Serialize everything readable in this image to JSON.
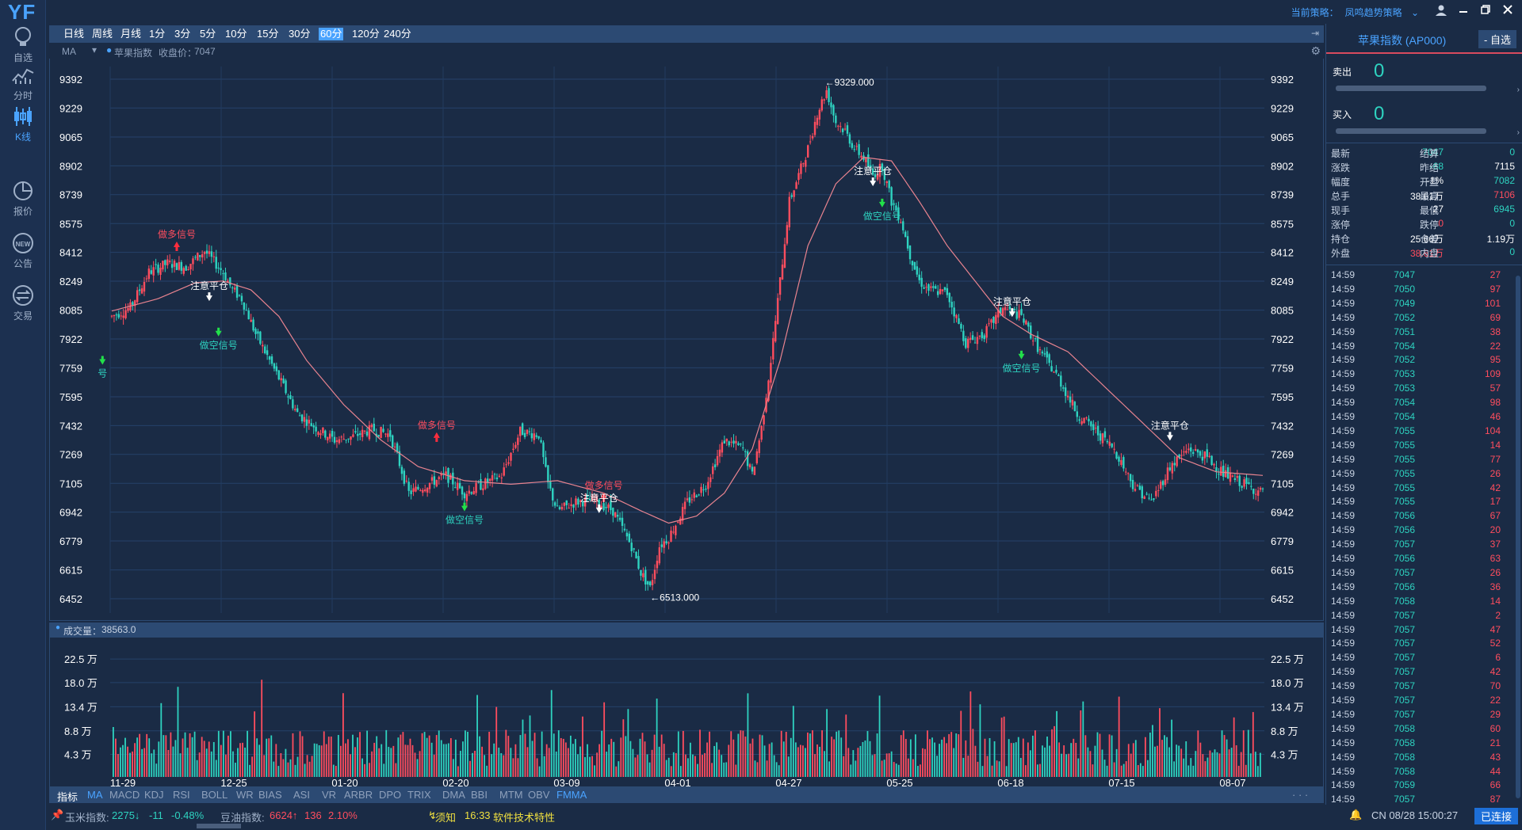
{
  "app": {
    "logo": "YF"
  },
  "nav": [
    {
      "label": "自选",
      "icon": "bulb-icon"
    },
    {
      "label": "分时",
      "icon": "line-chart-icon"
    },
    {
      "label": "K线",
      "icon": "candlestick-icon",
      "active": true
    },
    {
      "label": "报价",
      "icon": "pie-chart-icon"
    },
    {
      "label": "公告",
      "icon": "new-badge-icon"
    },
    {
      "label": "交易",
      "icon": "exchange-icon"
    }
  ],
  "topbar": {
    "strategy_label": "当前策略：",
    "strategy_value": "凤鸣趋势策略"
  },
  "periods": [
    "日线",
    "周线",
    "月线",
    "1分",
    "3分",
    "5分",
    "10分",
    "15分",
    "30分",
    "60分",
    "120分",
    "240分"
  ],
  "active_period": "60分",
  "ma_header": {
    "ma": "MA",
    "symbol": "苹果指数",
    "close_label": "收盘价：",
    "close_value": "7047"
  },
  "volume_header": {
    "label": "成交量：",
    "value": "38563.0"
  },
  "indicators": {
    "label": "指标",
    "items": [
      "MA",
      "MACD",
      "KDJ",
      "RSI",
      "BOLL",
      "WR",
      "BIAS",
      "ASI",
      "VR",
      "ARBR",
      "DPO",
      "TRIX",
      "DMA",
      "BBI",
      "MTM",
      "OBV",
      "FMMA"
    ],
    "active": [
      "MA",
      "FMMA"
    ]
  },
  "statusbar": {
    "corn_label": "玉米指数:",
    "corn_price": "2275↓",
    "corn_chg": "-11",
    "corn_pct": "-0.48%",
    "oil_label": "豆油指数:",
    "oil_price": "6624↑",
    "oil_chg": "136",
    "oil_pct": "2.10%",
    "notice_label": "须知",
    "notice_time": "16:33",
    "notice_text": "软件技术特性",
    "cn_time": "CN 08/28 15:00:27",
    "connected": "已连接"
  },
  "colors": {
    "up": "#ff4d5e",
    "down": "#2ed3c0",
    "accent": "#4aa3ff",
    "ma": "#e8838f",
    "bg": "#1a2b45"
  },
  "chart_data": {
    "type": "candlestick",
    "title": "苹果指数",
    "ylim": [
      6452,
      9392
    ],
    "y_ticks": [
      "9392",
      "9229",
      "9065",
      "8902",
      "8739",
      "8575",
      "8412",
      "8249",
      "8085",
      "7922",
      "7759",
      "7595",
      "7432",
      "7269",
      "7105",
      "6942",
      "6779",
      "6615",
      "6452"
    ],
    "x_ticks": [
      "11-29",
      "12-25",
      "01-20",
      "02-20",
      "03-09",
      "04-01",
      "04-27",
      "05-25",
      "06-18",
      "07-15",
      "08-07"
    ],
    "high_label": "←9329.000",
    "low_label": "←6513.000",
    "signals": [
      {
        "text": "做多信号",
        "kind": "long"
      },
      {
        "text": "注意平仓",
        "kind": "close"
      },
      {
        "text": "做空信号",
        "kind": "short"
      },
      {
        "text": "做多信号",
        "kind": "long"
      },
      {
        "text": "做空信号",
        "kind": "short"
      },
      {
        "text": "做多信号",
        "kind": "long"
      },
      {
        "text": "注意平仓",
        "kind": "close"
      },
      {
        "text": "注意平仓",
        "kind": "close"
      },
      {
        "text": "做空信号",
        "kind": "short"
      },
      {
        "text": "注意平仓",
        "kind": "close"
      },
      {
        "text": "做空信号",
        "kind": "short"
      },
      {
        "text": "注意平仓",
        "kind": "close"
      },
      {
        "text": "号",
        "kind": "short"
      }
    ],
    "close_path": [
      [
        0,
        8050
      ],
      [
        4,
        8100
      ],
      [
        8,
        8300
      ],
      [
        12,
        8350
      ],
      [
        16,
        8330
      ],
      [
        20,
        8420
      ],
      [
        24,
        8300
      ],
      [
        26,
        8200
      ],
      [
        28,
        8150
      ],
      [
        31,
        7950
      ],
      [
        34,
        7800
      ],
      [
        37,
        7650
      ],
      [
        40,
        7500
      ],
      [
        44,
        7420
      ],
      [
        48,
        7350
      ],
      [
        52,
        7370
      ],
      [
        56,
        7410
      ],
      [
        60,
        7380
      ],
      [
        64,
        7050
      ],
      [
        68,
        7100
      ],
      [
        72,
        7150
      ],
      [
        76,
        7050
      ],
      [
        80,
        7100
      ],
      [
        84,
        7150
      ],
      [
        88,
        7400
      ],
      [
        92,
        7380
      ],
      [
        94,
        7100
      ],
      [
        96,
        6950
      ],
      [
        100,
        7000
      ],
      [
        104,
        7010
      ],
      [
        108,
        6950
      ],
      [
        110,
        6850
      ],
      [
        112,
        6750
      ],
      [
        114,
        6600
      ],
      [
        116,
        6513
      ],
      [
        118,
        6750
      ],
      [
        120,
        6800
      ],
      [
        124,
        7000
      ],
      [
        128,
        7100
      ],
      [
        132,
        7350
      ],
      [
        136,
        7300
      ],
      [
        138,
        7150
      ],
      [
        140,
        7420
      ],
      [
        142,
        7800
      ],
      [
        144,
        8250
      ],
      [
        146,
        8700
      ],
      [
        148,
        8850
      ],
      [
        150,
        9000
      ],
      [
        152,
        9200
      ],
      [
        154,
        9329
      ],
      [
        156,
        9150
      ],
      [
        158,
        9100
      ],
      [
        160,
        9000
      ],
      [
        162,
        8950
      ],
      [
        164,
        8850
      ],
      [
        166,
        8900
      ],
      [
        168,
        8700
      ],
      [
        170,
        8600
      ],
      [
        172,
        8400
      ],
      [
        174,
        8250
      ],
      [
        176,
        8200
      ],
      [
        180,
        8180
      ],
      [
        184,
        7900
      ],
      [
        188,
        7950
      ],
      [
        192,
        8100
      ],
      [
        196,
        8050
      ],
      [
        200,
        7850
      ],
      [
        204,
        7700
      ],
      [
        208,
        7500
      ],
      [
        212,
        7400
      ],
      [
        216,
        7300
      ],
      [
        220,
        7100
      ],
      [
        224,
        7000
      ],
      [
        228,
        7200
      ],
      [
        232,
        7300
      ],
      [
        236,
        7250
      ],
      [
        240,
        7150
      ],
      [
        244,
        7100
      ],
      [
        248,
        7050
      ]
    ],
    "ma_path": [
      [
        0,
        8080
      ],
      [
        10,
        8150
      ],
      [
        18,
        8240
      ],
      [
        24,
        8250
      ],
      [
        30,
        8200
      ],
      [
        36,
        8050
      ],
      [
        42,
        7800
      ],
      [
        50,
        7550
      ],
      [
        58,
        7350
      ],
      [
        66,
        7200
      ],
      [
        76,
        7120
      ],
      [
        86,
        7100
      ],
      [
        96,
        7120
      ],
      [
        106,
        7050
      ],
      [
        114,
        6950
      ],
      [
        120,
        6880
      ],
      [
        126,
        6920
      ],
      [
        132,
        7050
      ],
      [
        138,
        7300
      ],
      [
        144,
        7800
      ],
      [
        150,
        8450
      ],
      [
        156,
        8800
      ],
      [
        162,
        8950
      ],
      [
        168,
        8930
      ],
      [
        174,
        8700
      ],
      [
        180,
        8450
      ],
      [
        186,
        8250
      ],
      [
        192,
        8050
      ],
      [
        198,
        7950
      ],
      [
        206,
        7850
      ],
      [
        214,
        7650
      ],
      [
        222,
        7450
      ],
      [
        230,
        7250
      ],
      [
        238,
        7170
      ],
      [
        248,
        7150
      ]
    ]
  },
  "right_panel": {
    "name": "苹果指数 (AP000)",
    "fav_button": "- 自选",
    "sell_label": "卖出",
    "sell_value": "0",
    "buy_label": "买入",
    "buy_value": "0",
    "quote": [
      [
        "最新",
        "7047",
        "dn",
        "结算",
        "0",
        "dn"
      ],
      [
        "涨跌",
        "-68",
        "dn",
        "昨结",
        "7115",
        "wh"
      ],
      [
        "幅度",
        "-1%",
        "wh",
        "开盘",
        "7082",
        "dn"
      ],
      [
        "总手",
        "38.61万",
        "wh",
        "最高",
        "7106",
        "up"
      ],
      [
        "现手",
        "27",
        "wh",
        "最低",
        "6945",
        "dn"
      ],
      [
        "涨停",
        "0",
        "up",
        "跌停",
        "0",
        "dn"
      ],
      [
        "持仓",
        "25.66万",
        "wh",
        "仓差",
        "1.19万",
        "wh"
      ],
      [
        "外盘",
        "38.61万",
        "up",
        "内盘",
        "0",
        "dn"
      ]
    ],
    "ticks": [
      [
        "14:59",
        "7047",
        "27",
        "up"
      ],
      [
        "14:59",
        "7050",
        "97",
        "up"
      ],
      [
        "14:59",
        "7049",
        "101",
        "up"
      ],
      [
        "14:59",
        "7052",
        "69",
        "up"
      ],
      [
        "14:59",
        "7051",
        "38",
        "up"
      ],
      [
        "14:59",
        "7054",
        "22",
        "up"
      ],
      [
        "14:59",
        "7052",
        "95",
        "up"
      ],
      [
        "14:59",
        "7053",
        "109",
        "up"
      ],
      [
        "14:59",
        "7053",
        "57",
        "up"
      ],
      [
        "14:59",
        "7054",
        "98",
        "up"
      ],
      [
        "14:59",
        "7054",
        "46",
        "up"
      ],
      [
        "14:59",
        "7055",
        "104",
        "up"
      ],
      [
        "14:59",
        "7055",
        "14",
        "up"
      ],
      [
        "14:59",
        "7055",
        "77",
        "up"
      ],
      [
        "14:59",
        "7055",
        "26",
        "up"
      ],
      [
        "14:59",
        "7055",
        "42",
        "up"
      ],
      [
        "14:59",
        "7055",
        "17",
        "up"
      ],
      [
        "14:59",
        "7056",
        "67",
        "up"
      ],
      [
        "14:59",
        "7056",
        "20",
        "up"
      ],
      [
        "14:59",
        "7057",
        "37",
        "up"
      ],
      [
        "14:59",
        "7056",
        "63",
        "up"
      ],
      [
        "14:59",
        "7057",
        "26",
        "up"
      ],
      [
        "14:59",
        "7056",
        "36",
        "up"
      ],
      [
        "14:59",
        "7058",
        "14",
        "up"
      ],
      [
        "14:59",
        "7057",
        "2",
        "up"
      ],
      [
        "14:59",
        "7057",
        "47",
        "up"
      ],
      [
        "14:59",
        "7057",
        "52",
        "up"
      ],
      [
        "14:59",
        "7057",
        "6",
        "up"
      ],
      [
        "14:59",
        "7057",
        "42",
        "up"
      ],
      [
        "14:59",
        "7057",
        "70",
        "up"
      ],
      [
        "14:59",
        "7057",
        "22",
        "up"
      ],
      [
        "14:59",
        "7057",
        "29",
        "up"
      ],
      [
        "14:59",
        "7058",
        "60",
        "up"
      ],
      [
        "14:59",
        "7058",
        "21",
        "up"
      ],
      [
        "14:59",
        "7058",
        "43",
        "up"
      ],
      [
        "14:59",
        "7058",
        "44",
        "up"
      ],
      [
        "14:59",
        "7059",
        "66",
        "up"
      ],
      [
        "14:59",
        "7057",
        "87",
        "up"
      ]
    ]
  },
  "volume_ticks": [
    "22.5 万",
    "18.0 万",
    "13.4 万",
    "8.8 万",
    "4.3 万"
  ]
}
